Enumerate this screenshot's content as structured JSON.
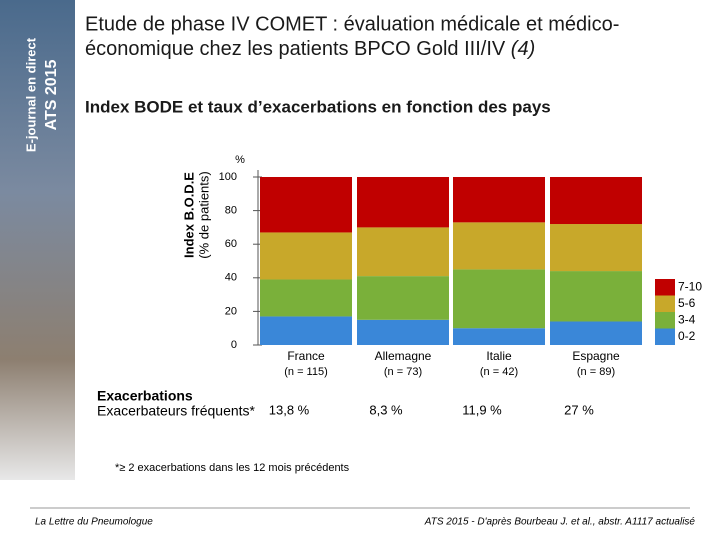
{
  "banner": [
    "E-journal en direct",
    "ATS 2015"
  ],
  "title_lines": [
    "Etude de phase IV COMET : évaluation médicale et médico-",
    "économique chez les patients BPCO Gold III/IV"
  ],
  "title_ref": "(4)",
  "chart_data": {
    "type": "stacked_bar",
    "title": "Index BODE et taux d’exacerbations en fonction des pays",
    "y_label_lines": [
      "Index B.O.D.E",
      "(% de patients)"
    ],
    "y_unit": "%",
    "categories": [
      "France",
      "Allemagne",
      "Italie",
      "Espagne"
    ],
    "category_notes": [
      "(n = 115)",
      "(n = 73)",
      "(n = 42)",
      "(n = 89)"
    ],
    "series": [
      {
        "name": "0-2",
        "color": "#3a87d8",
        "values": [
          17,
          15,
          10,
          14
        ]
      },
      {
        "name": "3-4",
        "color": "#7ab03a",
        "values": [
          22,
          26,
          35,
          30
        ]
      },
      {
        "name": "5-6",
        "color": "#c8a82a",
        "values": [
          28,
          29,
          28,
          28
        ]
      },
      {
        "name": "7-10",
        "color": "#c00000",
        "values": [
          33,
          30,
          27,
          28
        ]
      }
    ],
    "ylim": [
      0,
      100
    ],
    "yticks": [
      0,
      20,
      40,
      60,
      80,
      100
    ],
    "grid": false,
    "legend": "right"
  },
  "exacerbations": {
    "title": "Exacerbations",
    "label": "Exacerbateurs fréquents*",
    "values": [
      "13,8 %",
      "8,3 %",
      "11,9 %",
      "27 %"
    ]
  },
  "footnote": "*≥ 2 exacerbations dans les 12 mois précédents",
  "footer_left": "La Lettre du Pneumologue",
  "footer_right": "ATS 2015 - D'après Bourbeau J. et al., abstr. A1117 actualisé"
}
